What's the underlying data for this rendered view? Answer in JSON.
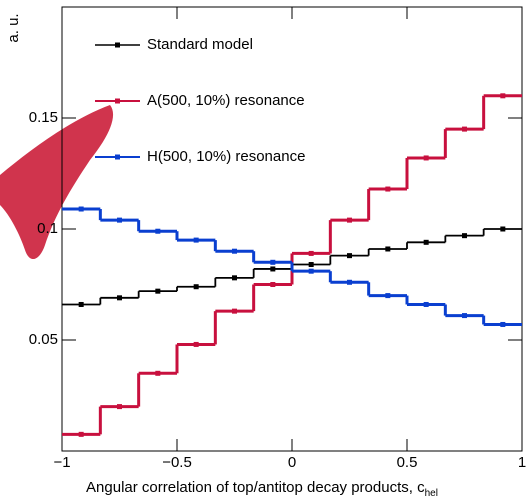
{
  "chart_data": {
    "type": "histogram",
    "y_label": "a. u.",
    "x_label": "Angular correlation of top/antitop decay products, c",
    "x_label_subscript": "hel",
    "bins": [
      -1,
      -0.8333,
      -0.6667,
      -0.5,
      -0.3333,
      -0.1667,
      0,
      0.1667,
      0.3333,
      0.5,
      0.6667,
      0.8333,
      1
    ],
    "series": [
      {
        "name": "Standard model",
        "color": "#000000",
        "values": [
          0.066,
          0.069,
          0.072,
          0.074,
          0.078,
          0.082,
          0.084,
          0.088,
          0.091,
          0.094,
          0.097,
          0.1
        ]
      },
      {
        "name": "A(500, 10%) resonance",
        "color": "#c8103e",
        "values": [
          0.0075,
          0.02,
          0.035,
          0.048,
          0.063,
          0.075,
          0.089,
          0.104,
          0.118,
          0.132,
          0.145,
          0.16
        ]
      },
      {
        "name": "H(500, 10%) resonance",
        "color": "#0a3fd0",
        "values": [
          0.109,
          0.104,
          0.099,
          0.095,
          0.09,
          0.085,
          0.081,
          0.076,
          0.07,
          0.066,
          0.061,
          0.057
        ]
      }
    ],
    "xlim": [
      -1,
      1
    ],
    "ylim": [
      0,
      0.2
    ],
    "xticks": [
      {
        "value": -1,
        "label": "−1"
      },
      {
        "value": -0.5,
        "label": "−0.5"
      },
      0,
      0.5,
      1
    ],
    "yticks": [
      0.05,
      0.1,
      0.15
    ],
    "legend": "top-left"
  }
}
